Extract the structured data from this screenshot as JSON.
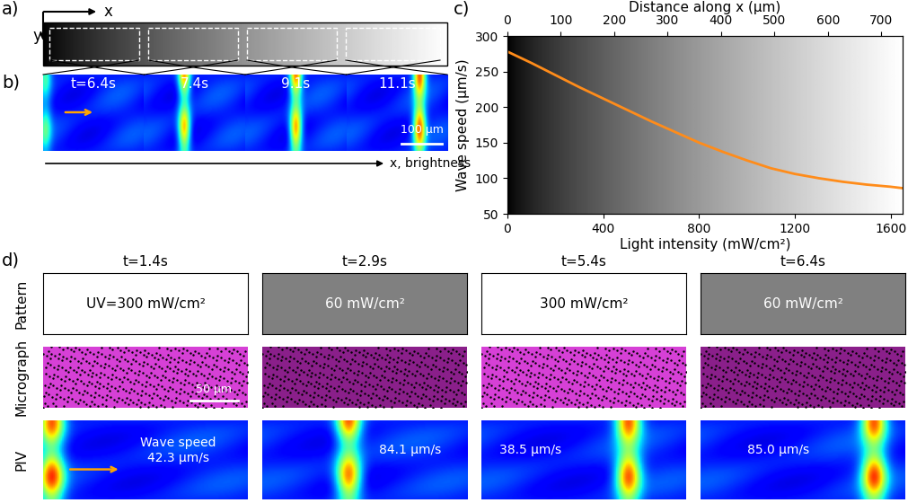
{
  "panel_labels": [
    "a)",
    "b)",
    "c)",
    "d)"
  ],
  "panel_a": {
    "axes": [
      "x",
      "y"
    ]
  },
  "panel_b": {
    "times": [
      "t=6.4s",
      "7.4s",
      "9.1s",
      "11.1s"
    ],
    "scale_bar": "100 µm",
    "axis_label": "x, brightness"
  },
  "chart_data": {
    "type": "line",
    "x": [
      0,
      100,
      200,
      300,
      400,
      500,
      600,
      700,
      800,
      900,
      1000,
      1100,
      1200,
      1300,
      1400,
      1500,
      1600,
      1650
    ],
    "values": [
      278,
      262,
      245,
      228,
      212,
      196,
      180,
      165,
      150,
      137,
      125,
      114,
      106,
      100,
      95,
      91,
      88,
      86
    ],
    "color": "#ff8c1a",
    "xlabel": "Light intensity (mW/cm²)",
    "ylabel": "Wave speed (µm/s)",
    "xlim": [
      0,
      1650
    ],
    "xticks": [
      0,
      400,
      800,
      1200,
      1600
    ],
    "ylim": [
      50,
      300
    ],
    "yticks": [
      50,
      100,
      150,
      200,
      250,
      300
    ],
    "x2label": "Distance along x (µm)",
    "x2lim": [
      0,
      740
    ],
    "x2ticks": [
      0,
      100,
      200,
      300,
      400,
      500,
      600,
      700
    ]
  },
  "panel_d": {
    "row_labels": [
      "Pattern",
      "Micrograph",
      "PIV"
    ],
    "scale_bar": "50 µm",
    "columns": [
      {
        "time": "t=1.4s",
        "pattern": "UV=300 mW/cm²",
        "pattern_color": "#ffffff",
        "micrograph_color": "#d640d6",
        "piv": "Wave speed\n42.3 µm/s"
      },
      {
        "time": "t=2.9s",
        "pattern": "60 mW/cm²",
        "pattern_color": "#808080",
        "micrograph_color": "#8a1f8a",
        "piv": "84.1 µm/s"
      },
      {
        "time": "t=5.4s",
        "pattern": "300 mW/cm²",
        "pattern_color": "#ffffff",
        "micrograph_color": "#d640d6",
        "piv": "38.5 µm/s"
      },
      {
        "time": "t=6.4s",
        "pattern": "60 mW/cm²",
        "pattern_color": "#808080",
        "micrograph_color": "#8a1f8a",
        "piv": "85.0 µm/s"
      }
    ]
  }
}
